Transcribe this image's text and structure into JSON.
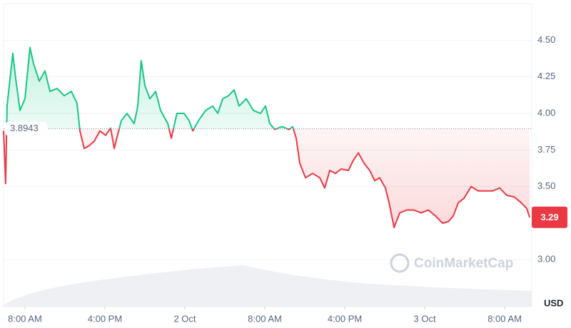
{
  "chart_data": {
    "type": "line",
    "x": [
      5.86,
      6.07,
      6.21,
      6.43,
      6.79,
      7.07,
      7.5,
      8.0,
      8.5,
      8.86,
      9.43,
      10.0,
      10.5,
      11.21,
      11.93,
      12.64,
      13.21,
      13.5,
      13.93,
      14.43,
      14.93,
      15.5,
      16.07,
      16.57,
      16.93,
      17.64,
      18.21,
      18.93,
      19.29,
      19.64,
      20.0,
      20.5,
      21.07,
      21.57,
      22.29,
      22.64,
      23.21,
      23.93,
      24.43,
      24.79,
      25.36,
      26.07,
      26.79,
      27.29,
      27.79,
      28.36,
      28.93,
      29.43,
      30.14,
      30.86,
      31.57,
      32.07,
      32.5,
      33.0,
      33.71,
      34.43,
      34.79,
      35.14,
      35.5,
      36.07,
      36.79,
      37.5,
      38.0,
      38.5,
      39.07,
      39.64,
      40.36,
      40.86,
      41.36,
      41.93,
      42.5,
      43.0,
      43.5,
      44.07,
      44.43,
      44.93,
      45.5,
      46.21,
      46.93,
      47.64,
      48.36,
      49.07,
      49.79,
      50.36,
      50.86,
      51.36,
      51.93,
      52.64,
      53.36,
      54.07,
      54.79,
      55.5,
      56.21,
      56.93,
      57.64,
      58.21,
      58.5
    ],
    "values": [
      3.88,
      3.52,
      4.05,
      4.19,
      4.41,
      4.24,
      4.02,
      4.1,
      4.45,
      4.34,
      4.22,
      4.29,
      4.15,
      4.17,
      4.12,
      4.15,
      4.07,
      3.88,
      3.76,
      3.78,
      3.81,
      3.88,
      3.85,
      3.9,
      3.76,
      3.95,
      4.0,
      3.93,
      4.05,
      4.36,
      4.19,
      4.1,
      4.15,
      4.02,
      3.93,
      3.83,
      4.0,
      4.0,
      3.95,
      3.88,
      3.95,
      4.02,
      4.05,
      4.0,
      4.1,
      4.12,
      4.16,
      4.05,
      4.1,
      4.02,
      4.0,
      4.05,
      3.93,
      3.89,
      3.91,
      3.89,
      3.91,
      3.83,
      3.66,
      3.56,
      3.59,
      3.56,
      3.49,
      3.61,
      3.59,
      3.62,
      3.61,
      3.68,
      3.73,
      3.66,
      3.61,
      3.54,
      3.56,
      3.49,
      3.39,
      3.22,
      3.32,
      3.34,
      3.34,
      3.32,
      3.34,
      3.3,
      3.25,
      3.26,
      3.3,
      3.39,
      3.42,
      3.5,
      3.47,
      3.47,
      3.47,
      3.49,
      3.44,
      3.43,
      3.39,
      3.35,
      3.29
    ],
    "xlim": [
      5.86,
      58.71
    ],
    "xticks": [
      {
        "value": 8,
        "label": "8:00 AM"
      },
      {
        "value": 16,
        "label": "4:00 PM"
      },
      {
        "value": 24,
        "label": "2 Oct"
      },
      {
        "value": 32,
        "label": "8:00 AM"
      },
      {
        "value": 40,
        "label": "4:00 PM"
      },
      {
        "value": 48,
        "label": "3 Oct"
      },
      {
        "value": 56,
        "label": "8:00 AM"
      }
    ],
    "ylim": [
      2.68,
      4.75
    ],
    "yticks": [
      {
        "value": 3,
        "label": "3.00"
      },
      {
        "value": 3.5,
        "label": "3.50"
      },
      {
        "value": 3.75,
        "label": "3.75"
      },
      {
        "value": 4,
        "label": "4.00"
      },
      {
        "value": 4.25,
        "label": "4.25"
      },
      {
        "value": 4.5,
        "label": "4.50"
      }
    ],
    "baseline": 3.8943,
    "current_price": 3.29,
    "currency": "USD",
    "watermark": "CoinMarketCap",
    "up_color": "#16c784",
    "down_color": "#ea3943",
    "grid": true
  }
}
